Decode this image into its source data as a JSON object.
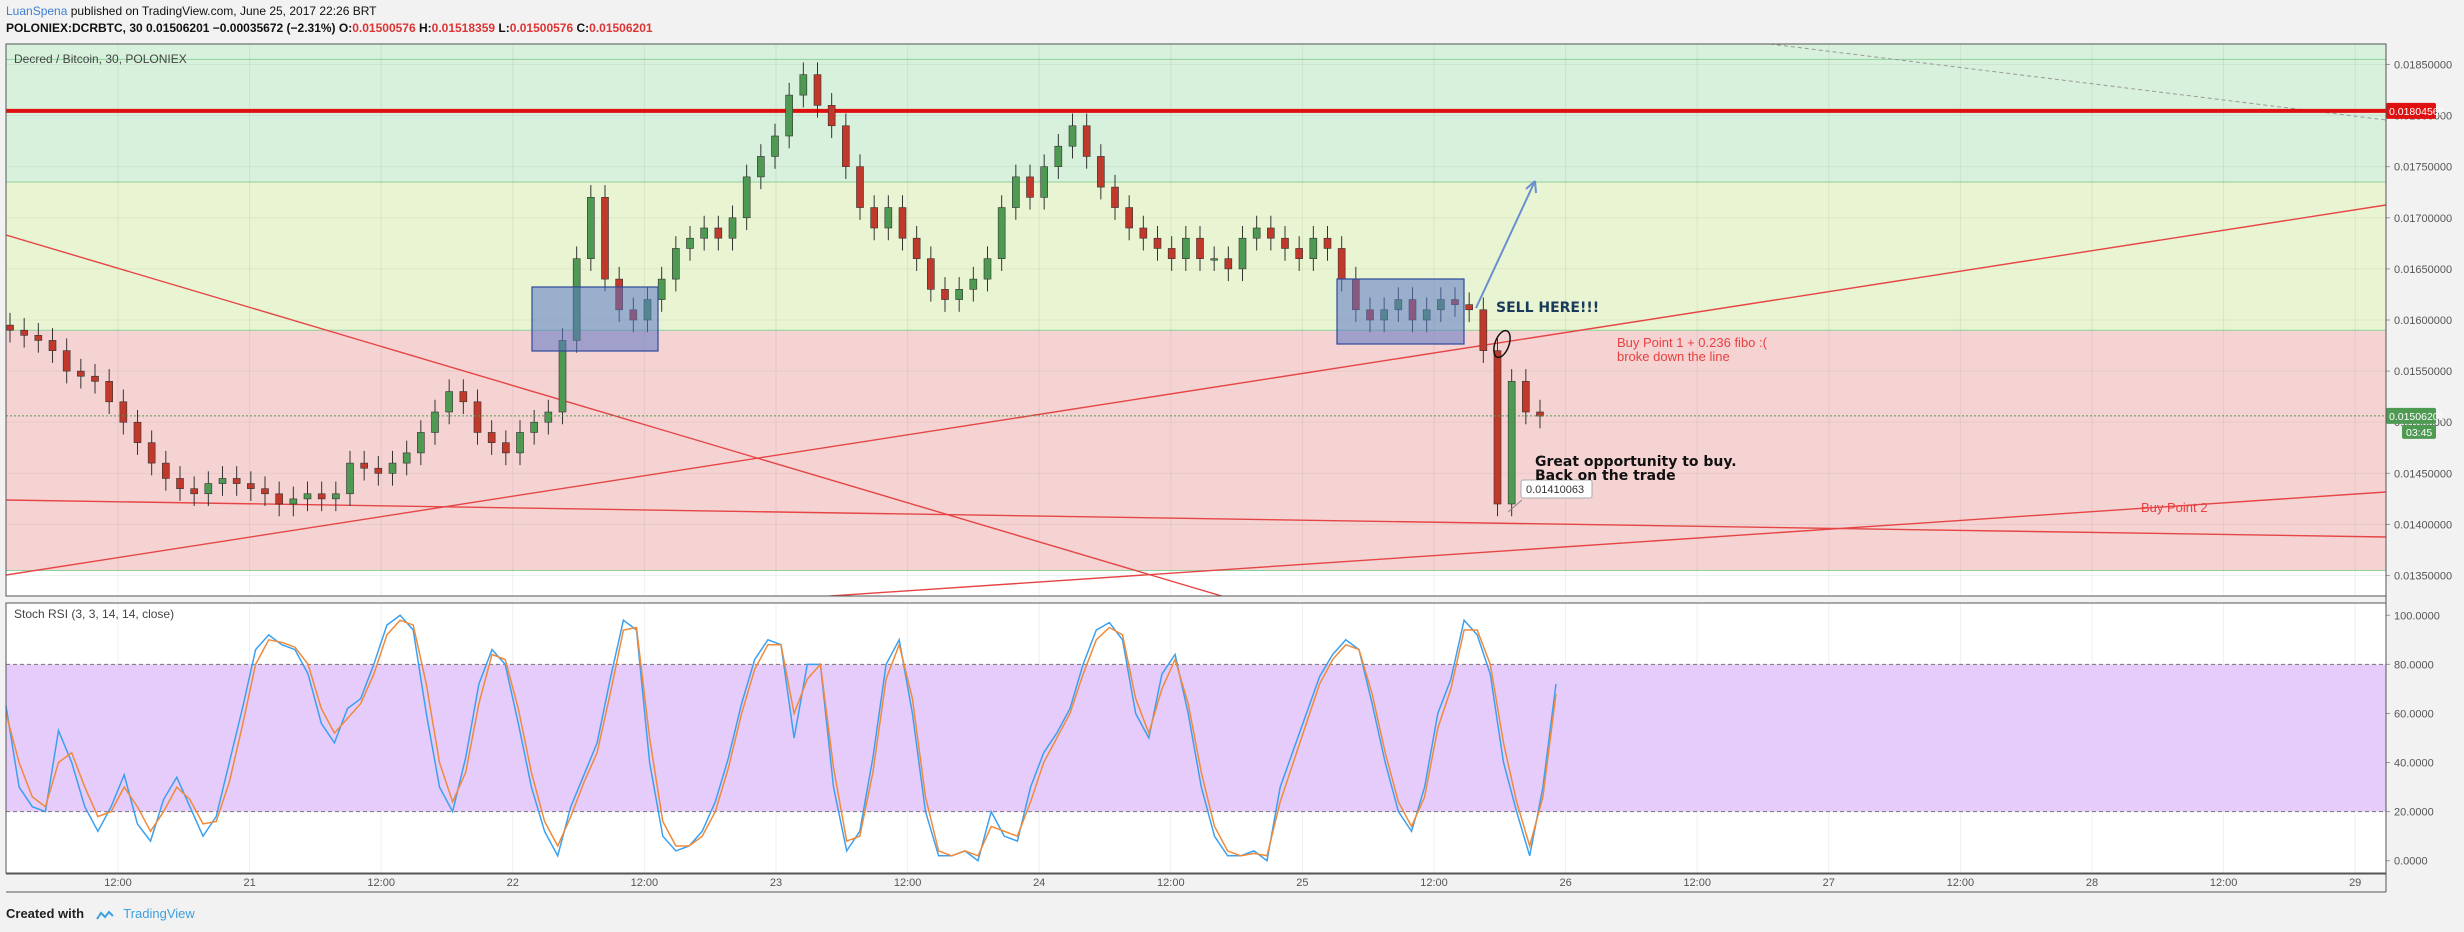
{
  "header": {
    "author": "LuanSpena",
    "published": "published on TradingView.com, June 25, 2017 22:26 BRT",
    "symbol": "POLONIEX:DCRBTC, 30",
    "last": "0.01506201",
    "change": "−0.00035672 (−2.31%)",
    "ohlc": [
      {
        "k": "O:",
        "v": "0.01500576"
      },
      {
        "k": "H:",
        "v": "0.01518359"
      },
      {
        "k": "L:",
        "v": "0.01500576"
      },
      {
        "k": "C:",
        "v": "0.01506201"
      }
    ]
  },
  "footer": {
    "created_with": "Created with",
    "brand": "TradingView"
  },
  "chart_data": [
    {
      "type": "candlestick",
      "title": "Decred / Bitcoin, 30, POLONIEX",
      "ylim": [
        0.0133,
        0.0187
      ],
      "y_ticks": [
        "0.01850000",
        "0.01800000",
        "0.01750000",
        "0.01700000",
        "0.01650000",
        "0.01600000",
        "0.01550000",
        "0.01500000",
        "0.01450000",
        "0.01400000",
        "0.01350000"
      ],
      "x_ticks": [
        "12:00",
        "21",
        "12:00",
        "22",
        "12:00",
        "23",
        "12:00",
        "24",
        "12:00",
        "25",
        "12:00",
        "26",
        "12:00",
        "27",
        "12:00",
        "28",
        "12:00",
        "29"
      ],
      "price_series": [
        0.0159,
        0.01585,
        0.0158,
        0.0157,
        0.0155,
        0.01545,
        0.0154,
        0.0152,
        0.015,
        0.0148,
        0.0146,
        0.01445,
        0.01435,
        0.0143,
        0.0144,
        0.01445,
        0.0144,
        0.01435,
        0.0143,
        0.0142,
        0.01425,
        0.0143,
        0.01425,
        0.0143,
        0.0146,
        0.01455,
        0.0145,
        0.0146,
        0.0147,
        0.0149,
        0.0151,
        0.0153,
        0.0152,
        0.0149,
        0.0148,
        0.0147,
        0.0149,
        0.015,
        0.0151,
        0.0158,
        0.0166,
        0.0172,
        0.0164,
        0.0161,
        0.016,
        0.0162,
        0.0164,
        0.0167,
        0.0168,
        0.0169,
        0.0168,
        0.017,
        0.0174,
        0.0176,
        0.0178,
        0.0182,
        0.0184,
        0.0181,
        0.0179,
        0.0175,
        0.0171,
        0.0169,
        0.0171,
        0.0168,
        0.0166,
        0.0163,
        0.0162,
        0.0163,
        0.0164,
        0.0166,
        0.0171,
        0.0174,
        0.0172,
        0.0175,
        0.0177,
        0.0179,
        0.0176,
        0.0173,
        0.0171,
        0.0169,
        0.0168,
        0.0167,
        0.0166,
        0.0168,
        0.0166,
        0.0166,
        0.0165,
        0.0168,
        0.0169,
        0.0168,
        0.0167,
        0.0166,
        0.0168,
        0.0167,
        0.0164,
        0.0161,
        0.016,
        0.0161,
        0.0162,
        0.016,
        0.0161,
        0.0162,
        0.01615,
        0.0161,
        0.0157,
        0.0142,
        0.0154,
        0.0151,
        0.01506
      ],
      "price_line": {
        "label": "0.01506201",
        "value": 0.01506201,
        "timer": "03:45"
      },
      "resistance": {
        "label": "0.01804562",
        "value": 0.01804562
      },
      "fib_levels": [
        0.01855,
        0.01804562,
        0.01735,
        0.0159,
        0.01355
      ],
      "zones": [
        {
          "from": 0.0159,
          "to": 0.0187,
          "color": "#d7f1dc"
        },
        {
          "from": 0.0159,
          "to": 0.01735,
          "color": "#e9f4d2"
        },
        {
          "from": 0.01355,
          "to": 0.0159,
          "color": "#f5d3d3"
        }
      ],
      "low_label": "0.01410063",
      "annotations": [
        {
          "id": "sell",
          "text": "SELL HERE!!!"
        },
        {
          "id": "buy1",
          "text": "Buy Point 1 + 0.236 fibo :("
        },
        {
          "id": "buy1b",
          "text": "broke down the line"
        },
        {
          "id": "opp1",
          "text": "Great opportunity to buy."
        },
        {
          "id": "opp2",
          "text": "Back on the trade"
        },
        {
          "id": "buy2",
          "text": "Buy Point 2"
        }
      ],
      "colors": {
        "up": "#4f9a53",
        "down": "#c0392b",
        "resistance": "#e01010",
        "trend": "#e64545",
        "box": "#5a76c4",
        "arrow": "#6a8fd0"
      }
    },
    {
      "type": "line",
      "title": "Stoch RSI (3, 3, 14, 14, close)",
      "ylim": [
        -5,
        105
      ],
      "y_ticks": [
        "100.0000",
        "80.0000",
        "60.0000",
        "40.0000",
        "20.0000",
        "0.0000"
      ],
      "band": [
        20,
        80
      ],
      "series": [
        {
          "color": "#3aa0f0",
          "values": [
            63,
            30,
            22,
            20,
            53,
            40,
            22,
            12,
            22,
            35,
            15,
            8,
            25,
            34,
            22,
            10,
            18,
            40,
            62,
            86,
            92,
            88,
            86,
            76,
            56,
            48,
            62,
            66,
            80,
            96,
            100,
            94,
            60,
            30,
            20,
            42,
            72,
            86,
            80,
            56,
            30,
            12,
            2,
            22,
            35,
            48,
            74,
            98,
            94,
            40,
            10,
            4,
            6,
            12,
            24,
            42,
            64,
            82,
            90,
            88,
            50,
            80,
            80,
            30,
            4,
            12,
            42,
            80,
            90,
            60,
            20,
            2,
            2,
            4,
            0,
            20,
            10,
            8,
            30,
            44,
            52,
            62,
            80,
            94,
            97,
            90,
            60,
            50,
            76,
            84,
            60,
            30,
            10,
            2,
            2,
            4,
            0,
            30,
            45,
            60,
            75,
            84,
            90,
            86,
            64,
            40,
            20,
            12,
            30,
            60,
            74,
            98,
            92,
            76,
            40,
            20,
            2,
            30,
            72
          ]
        },
        {
          "color": "#f08a3a",
          "values": [
            60,
            40,
            26,
            22,
            40,
            44,
            30,
            18,
            20,
            30,
            22,
            12,
            20,
            30,
            25,
            15,
            16,
            32,
            55,
            80,
            90,
            89,
            87,
            80,
            62,
            52,
            58,
            64,
            76,
            92,
            98,
            96,
            72,
            40,
            24,
            36,
            64,
            84,
            82,
            62,
            36,
            16,
            6,
            18,
            32,
            44,
            68,
            94,
            95,
            50,
            16,
            6,
            6,
            10,
            20,
            38,
            60,
            78,
            88,
            88,
            60,
            74,
            80,
            38,
            8,
            10,
            36,
            74,
            88,
            66,
            26,
            4,
            2,
            4,
            2,
            14,
            12,
            10,
            24,
            40,
            50,
            60,
            76,
            90,
            95,
            92,
            66,
            52,
            70,
            82,
            64,
            36,
            14,
            4,
            2,
            3,
            2,
            24,
            40,
            56,
            72,
            82,
            88,
            86,
            68,
            44,
            24,
            14,
            26,
            54,
            70,
            94,
            94,
            80,
            48,
            24,
            6,
            26,
            68
          ]
        }
      ]
    }
  ]
}
